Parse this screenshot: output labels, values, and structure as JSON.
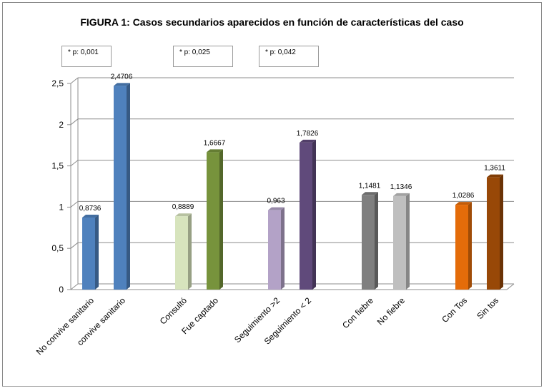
{
  "chart_data": {
    "type": "bar",
    "title": "FIGURA 1:  Casos secundarios aparecidos en función de características del caso",
    "xlabel": "",
    "ylabel": "",
    "ylim": [
      0,
      2.5
    ],
    "yticks": [
      "0",
      "0,5",
      "1",
      "1,5",
      "2",
      "2,5"
    ],
    "grid": true,
    "categories": [
      "No convive sanitario",
      "convive sanitario",
      "Consultó",
      "Fue captado",
      "Seguimiento >2",
      "Seguimiento < 2",
      "Con fiebre",
      "No  fiebre",
      "Con Tos",
      "Sin tos"
    ],
    "values": [
      0.8736,
      2.4706,
      0.8889,
      1.6667,
      0.963,
      1.7826,
      1.1481,
      1.1346,
      1.0286,
      1.3611
    ],
    "value_labels": [
      "0,8736",
      "2,4706",
      "0,8889",
      "1,6667",
      "0,963",
      "1,7826",
      "1,1481",
      "1,1346",
      "1,0286",
      "1,3611"
    ],
    "colors": [
      "#4f81bd",
      "#4f81bd",
      "#d7e4bd",
      "#77933c",
      "#b3a2c7",
      "#604a7b",
      "#7f7f7f",
      "#bfbfbf",
      "#e46c0a",
      "#984807"
    ],
    "annotations": [
      "* p: 0,001",
      "* p: 0,025",
      "* p: 0,042"
    ]
  }
}
